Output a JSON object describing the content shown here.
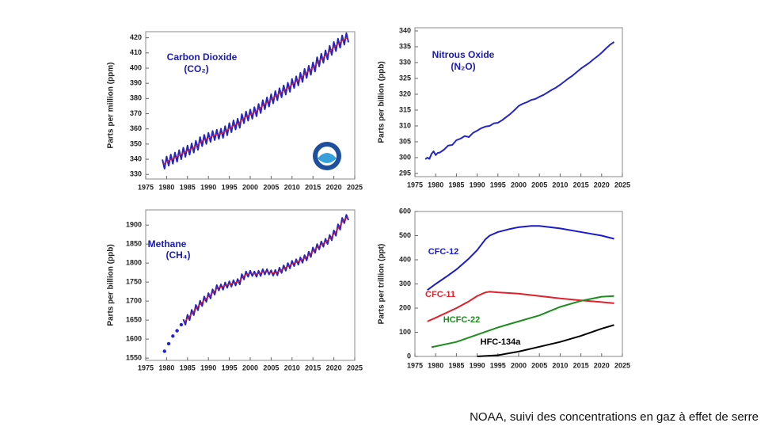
{
  "chart_data": [
    {
      "type": "line",
      "title": "Carbon Dioxide",
      "subtitle": "(CO₂)",
      "y_label": "Parts per million (ppm)",
      "xlim": [
        1975,
        2025
      ],
      "xticks": [
        1975,
        1980,
        1985,
        1990,
        1995,
        2000,
        2005,
        2010,
        2015,
        2020,
        2025
      ],
      "ylim": [
        327,
        424
      ],
      "yticks": [
        330,
        340,
        350,
        360,
        370,
        380,
        390,
        400,
        410,
        420
      ],
      "series": [
        {
          "color": "#2424c8",
          "style": "line",
          "x": [
            1979,
            1979.5,
            1980,
            1980.5,
            1981,
            1981.5,
            1982,
            1982.5,
            1983,
            1983.5,
            1984,
            1984.5,
            1985,
            1985.5,
            1986,
            1986.5,
            1987,
            1987.5,
            1988,
            1988.5,
            1989,
            1989.5,
            1990,
            1990.5,
            1991,
            1991.5,
            1992,
            1992.5,
            1993,
            1993.5,
            1994,
            1994.5,
            1995,
            1995.5,
            1996,
            1996.5,
            1997,
            1997.5,
            1998,
            1998.5,
            1999,
            1999.5,
            2000,
            2000.5,
            2001,
            2001.5,
            2002,
            2002.5,
            2003,
            2003.5,
            2004,
            2004.5,
            2005,
            2005.5,
            2006,
            2006.5,
            2007,
            2007.5,
            2008,
            2008.5,
            2009,
            2009.5,
            2010,
            2010.5,
            2011,
            2011.5,
            2012,
            2012.5,
            2013,
            2013.5,
            2014,
            2014.5,
            2015,
            2015.5,
            2016,
            2016.5,
            2017,
            2017.5,
            2018,
            2018.5,
            2019,
            2019.5,
            2020,
            2020.5,
            2021,
            2021.5,
            2022,
            2022.5,
            2023,
            2023.5
          ],
          "values": [
            339.8,
            333.8,
            341.8,
            335.8,
            343.1,
            337.1,
            344.4,
            338.4,
            346.0,
            340.0,
            347.6,
            341.6,
            349.0,
            343.0,
            350.4,
            344.4,
            352.2,
            346.2,
            354.6,
            348.6,
            356.1,
            350.1,
            357.4,
            351.4,
            358.6,
            352.6,
            359.4,
            353.4,
            360.1,
            354.1,
            361.8,
            355.8,
            363.8,
            357.8,
            365.6,
            359.6,
            366.7,
            360.7,
            369.7,
            363.7,
            371.4,
            365.4,
            372.7,
            366.7,
            374.3,
            368.3,
            376.4,
            370.4,
            378.9,
            372.9,
            380.7,
            374.7,
            382.8,
            376.8,
            384.9,
            378.9,
            386.8,
            380.8,
            388.6,
            382.6,
            390.4,
            384.4,
            392.9,
            386.9,
            394.6,
            388.6,
            396.9,
            390.9,
            399.5,
            393.5,
            401.6,
            395.6,
            403.8,
            397.8,
            407.2,
            401.2,
            409.5,
            403.5,
            411.7,
            405.7,
            414.7,
            408.7,
            417.2,
            411.2,
            419.4,
            413.4,
            421.5,
            415.5,
            423.0,
            417.0
          ]
        },
        {
          "color": "#e0202a",
          "style": "line",
          "x": [
            1979.25,
            1980.25,
            1981.25,
            1982.25,
            1983.25,
            1984.25,
            1985.25,
            1986.25,
            1987.25,
            1988.25,
            1989.25,
            1990.25,
            1991.25,
            1992.25,
            1993.25,
            1994.25,
            1995.25,
            1996.25,
            1997.25,
            1998.25,
            1999.25,
            2000.25,
            2001.25,
            2002.25,
            2003.25,
            2004.25,
            2005.25,
            2006.25,
            2007.25,
            2008.25,
            2009.25,
            2010.25,
            2011.25,
            2012.25,
            2013.25,
            2014.25,
            2015.25,
            2016.25,
            2017.25,
            2018.25,
            2019.25,
            2020.25,
            2021.25,
            2022.25,
            2023.25
          ],
          "values": [
            336.8,
            338.8,
            340.1,
            341.4,
            343.0,
            344.6,
            346.0,
            347.4,
            349.2,
            351.6,
            353.1,
            354.4,
            355.6,
            356.4,
            357.1,
            358.8,
            360.8,
            362.6,
            363.7,
            366.7,
            368.4,
            369.7,
            371.3,
            373.4,
            375.9,
            377.7,
            379.8,
            381.9,
            383.8,
            385.6,
            387.4,
            389.9,
            391.6,
            393.9,
            396.5,
            398.6,
            400.8,
            404.2,
            406.5,
            408.7,
            411.7,
            414.2,
            416.4,
            418.5,
            420.0
          ]
        }
      ]
    },
    {
      "type": "line",
      "title": "Nitrous Oxide",
      "subtitle": "(N₂O)",
      "y_label": "Parts per billion (ppb)",
      "xlim": [
        1975,
        2025
      ],
      "xticks": [
        1975,
        1980,
        1985,
        1990,
        1995,
        2000,
        2005,
        2010,
        2015,
        2020,
        2025
      ],
      "ylim": [
        294,
        341
      ],
      "yticks": [
        295,
        300,
        305,
        310,
        315,
        320,
        325,
        330,
        335,
        340
      ],
      "series": [
        {
          "color": "#2424c8",
          "style": "line",
          "x": [
            1977.5,
            1978,
            1978.5,
            1979,
            1979.5,
            1980,
            1980.5,
            1981,
            1982,
            1983,
            1984,
            1985,
            1986,
            1987,
            1988,
            1989,
            1990,
            1991,
            1992,
            1993,
            1994,
            1995,
            1996,
            1997,
            1998,
            1999,
            2000,
            2001,
            2002,
            2003,
            2004,
            2005,
            2006,
            2007,
            2008,
            2009,
            2010,
            2011,
            2012,
            2013,
            2014,
            2015,
            2016,
            2017,
            2018,
            2019,
            2020,
            2021,
            2022,
            2023
          ],
          "values": [
            299.5,
            300.0,
            299.6,
            301.2,
            302.0,
            300.8,
            301.5,
            301.6,
            302.5,
            303.8,
            304.0,
            305.5,
            306.0,
            306.8,
            306.5,
            307.8,
            308.5,
            309.3,
            309.8,
            310.0,
            310.8,
            311.0,
            311.8,
            312.8,
            313.8,
            315.0,
            316.3,
            317.0,
            317.5,
            318.2,
            318.5,
            319.2,
            319.8,
            320.6,
            321.4,
            322.1,
            323.0,
            324.0,
            325.0,
            325.9,
            327.0,
            328.1,
            329.0,
            329.9,
            331.0,
            332.0,
            333.1,
            334.4,
            335.6,
            336.5
          ]
        }
      ]
    },
    {
      "type": "line",
      "title": "Methane",
      "subtitle": "(CH₄)",
      "y_label": "Parts per billion (ppb)",
      "xlim": [
        1975,
        2025
      ],
      "xticks": [
        1975,
        1980,
        1985,
        1990,
        1995,
        2000,
        2005,
        2010,
        2015,
        2020,
        2025
      ],
      "ylim": [
        1544,
        1940
      ],
      "yticks": [
        1550,
        1600,
        1650,
        1700,
        1750,
        1800,
        1850,
        1900
      ],
      "series": [
        {
          "color": "#2424c8",
          "style": "points",
          "x": [
            1979.5,
            1980.5,
            1981.5,
            1982.5,
            1983.5
          ],
          "values": [
            1568,
            1588,
            1608,
            1622,
            1638
          ]
        },
        {
          "color": "#2424c8",
          "style": "line",
          "x": [
            1984,
            1984.5,
            1985,
            1985.5,
            1986,
            1986.5,
            1987,
            1987.5,
            1988,
            1988.5,
            1989,
            1989.5,
            1990,
            1990.5,
            1991,
            1991.5,
            1992,
            1992.5,
            1993,
            1993.5,
            1994,
            1994.5,
            1995,
            1995.5,
            1996,
            1996.5,
            1997,
            1997.5,
            1998,
            1998.5,
            1999,
            1999.5,
            2000,
            2000.5,
            2001,
            2001.5,
            2002,
            2002.5,
            2003,
            2003.5,
            2004,
            2004.5,
            2005,
            2005.5,
            2006,
            2006.5,
            2007,
            2007.5,
            2008,
            2008.5,
            2009,
            2009.5,
            2010,
            2010.5,
            2011,
            2011.5,
            2012,
            2012.5,
            2013,
            2013.5,
            2014,
            2014.5,
            2015,
            2015.5,
            2016,
            2016.5,
            2017,
            2017.5,
            2018,
            2018.5,
            2019,
            2019.5,
            2020,
            2020.5,
            2021,
            2021.5,
            2022,
            2022.5,
            2023,
            2023.5
          ],
          "values": [
            1652,
            1638,
            1664,
            1650,
            1677,
            1663,
            1690,
            1676,
            1701,
            1687,
            1712,
            1698,
            1721,
            1707,
            1731,
            1717,
            1742,
            1728,
            1744,
            1730,
            1749,
            1735,
            1752,
            1738,
            1755,
            1741,
            1758,
            1744,
            1771,
            1757,
            1778,
            1764,
            1780,
            1766,
            1778,
            1764,
            1780,
            1766,
            1784,
            1770,
            1784,
            1770,
            1781,
            1767,
            1782,
            1768,
            1788,
            1774,
            1794,
            1780,
            1800,
            1786,
            1806,
            1792,
            1810,
            1796,
            1815,
            1801,
            1821,
            1807,
            1830,
            1816,
            1841,
            1827,
            1850,
            1836,
            1857,
            1843,
            1864,
            1850,
            1874,
            1860,
            1886,
            1872,
            1902,
            1888,
            1919,
            1905,
            1927,
            1913
          ]
        },
        {
          "color": "#e0202a",
          "style": "line",
          "x": [
            1984.25,
            1985.25,
            1986.25,
            1987.25,
            1988.25,
            1989.25,
            1990.25,
            1991.25,
            1992.25,
            1993.25,
            1994.25,
            1995.25,
            1996.25,
            1997.25,
            1998.25,
            1999.25,
            2000.25,
            2001.25,
            2002.25,
            2003.25,
            2004.25,
            2005.25,
            2006.25,
            2007.25,
            2008.25,
            2009.25,
            2010.25,
            2011.25,
            2012.25,
            2013.25,
            2014.25,
            2015.25,
            2016.25,
            2017.25,
            2018.25,
            2019.25,
            2020.25,
            2021.25,
            2022.25,
            2023.25
          ],
          "values": [
            1645,
            1657,
            1670,
            1683,
            1694,
            1705,
            1714,
            1724,
            1735,
            1737,
            1742,
            1745,
            1748,
            1751,
            1764,
            1771,
            1773,
            1771,
            1773,
            1777,
            1777,
            1774,
            1775,
            1781,
            1787,
            1793,
            1799,
            1803,
            1808,
            1814,
            1823,
            1834,
            1843,
            1850,
            1857,
            1867,
            1879,
            1895,
            1912,
            1920
          ]
        }
      ]
    },
    {
      "type": "line",
      "y_label": "Parts per trillion (ppt)",
      "xlim": [
        1975,
        2025
      ],
      "xticks": [
        1975,
        1980,
        1985,
        1990,
        1995,
        2000,
        2005,
        2010,
        2015,
        2020,
        2025
      ],
      "ylim": [
        0,
        600
      ],
      "yticks": [
        0,
        100,
        200,
        300,
        400,
        500,
        600
      ],
      "series": [
        {
          "name": "CFC-12",
          "color": "#1a1acd",
          "style": "line",
          "x": [
            1978,
            1980,
            1983,
            1985,
            1988,
            1990,
            1992,
            1993,
            1995,
            1998,
            2000,
            2003,
            2005,
            2010,
            2015,
            2020,
            2023
          ],
          "values": [
            275,
            300,
            335,
            360,
            405,
            440,
            485,
            500,
            515,
            528,
            535,
            540,
            540,
            530,
            515,
            500,
            487
          ]
        },
        {
          "name": "CFC-11",
          "color": "#e0202a",
          "style": "line",
          "x": [
            1978,
            1980,
            1985,
            1988,
            1990,
            1992,
            1993,
            1995,
            2000,
            2005,
            2010,
            2015,
            2020,
            2023
          ],
          "values": [
            145,
            160,
            200,
            228,
            250,
            265,
            268,
            265,
            260,
            250,
            240,
            232,
            225,
            220
          ]
        },
        {
          "name": "HCFC-22",
          "color": "#1e8c1e",
          "style": "line",
          "x": [
            1979,
            1985,
            1990,
            1995,
            2000,
            2005,
            2010,
            2015,
            2020,
            2023
          ],
          "values": [
            38,
            60,
            90,
            120,
            145,
            170,
            205,
            230,
            247,
            250
          ]
        },
        {
          "name": "HFC-134a",
          "color": "#000000",
          "style": "line",
          "x": [
            1990,
            1995,
            2000,
            2005,
            2010,
            2015,
            2020,
            2023
          ],
          "values": [
            0,
            5,
            20,
            40,
            60,
            85,
            115,
            130
          ]
        }
      ]
    }
  ],
  "caption": "NOAA, suivi des concentrations en gaz à effet de serre"
}
